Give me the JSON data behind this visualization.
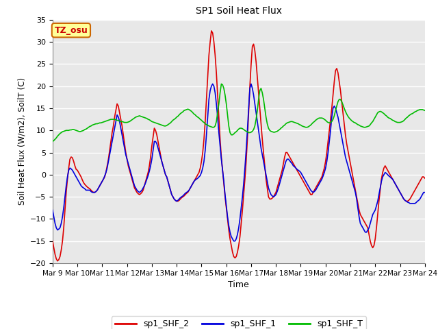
{
  "title": "SP1 Soil Heat Flux",
  "xlabel": "Time",
  "ylabel": "Soil Heat Flux (W/m2), SoilT (C)",
  "ylim": [
    -20,
    35
  ],
  "tz_label": "TZ_osu",
  "fig_bg_color": "#ffffff",
  "plot_bg_color": "#e8e8e8",
  "grid_color": "#ffffff",
  "series": {
    "sp1_SHF_2": {
      "color": "#dd0000",
      "linewidth": 1.2
    },
    "sp1_SHF_1": {
      "color": "#0000dd",
      "linewidth": 1.2
    },
    "sp1_SHF_T": {
      "color": "#00bb00",
      "linewidth": 1.2
    }
  },
  "x_ticks_labels": [
    "Mar 9",
    "Mar 10",
    "Mar 11",
    "Mar 12",
    "Mar 13",
    "Mar 14",
    "Mar 15",
    "Mar 16",
    "Mar 17",
    "Mar 18",
    "Mar 19",
    "Mar 20",
    "Mar 21",
    "Mar 22",
    "Mar 23",
    "Mar 24"
  ],
  "shf2_x": [
    9.0,
    9.05,
    9.1,
    9.15,
    9.2,
    9.25,
    9.3,
    9.35,
    9.4,
    9.45,
    9.5,
    9.55,
    9.6,
    9.65,
    9.7,
    9.75,
    9.8,
    9.85,
    9.9,
    9.95,
    10.0,
    10.05,
    10.1,
    10.15,
    10.2,
    10.25,
    10.3,
    10.35,
    10.4,
    10.45,
    10.5,
    10.55,
    10.6,
    10.65,
    10.7,
    10.75,
    10.8,
    10.85,
    10.9,
    10.95,
    11.0,
    11.05,
    11.1,
    11.15,
    11.2,
    11.25,
    11.3,
    11.35,
    11.4,
    11.45,
    11.5,
    11.55,
    11.6,
    11.65,
    11.7,
    11.75,
    11.8,
    11.85,
    11.9,
    11.95,
    12.0,
    12.05,
    12.1,
    12.15,
    12.2,
    12.25,
    12.3,
    12.35,
    12.4,
    12.45,
    12.5,
    12.55,
    12.6,
    12.65,
    12.7,
    12.75,
    12.8,
    12.85,
    12.9,
    12.95,
    13.0,
    13.05,
    13.1,
    13.15,
    13.2,
    13.25,
    13.3,
    13.35,
    13.4,
    13.45,
    13.5,
    13.55,
    13.6,
    13.65,
    13.7,
    13.75,
    13.8,
    13.85,
    13.9,
    13.95,
    14.0,
    14.05,
    14.1,
    14.15,
    14.2,
    14.25,
    14.3,
    14.35,
    14.4,
    14.45,
    14.5,
    14.55,
    14.6,
    14.65,
    14.7,
    14.75,
    14.8,
    14.85,
    14.9,
    14.95,
    15.0,
    15.05,
    15.1,
    15.15,
    15.2,
    15.25,
    15.3,
    15.35,
    15.4,
    15.45,
    15.5,
    15.55,
    15.6,
    15.65,
    15.7,
    15.75,
    15.8,
    15.85,
    15.9,
    15.95,
    16.0,
    16.05,
    16.1,
    16.15,
    16.2,
    16.25,
    16.3,
    16.35,
    16.4,
    16.45,
    16.5,
    16.55,
    16.6,
    16.65,
    16.7,
    16.75,
    16.8,
    16.85,
    16.9,
    16.95,
    17.0,
    17.05,
    17.1,
    17.15,
    17.2,
    17.25,
    17.3,
    17.35,
    17.4,
    17.45,
    17.5,
    17.55,
    17.6,
    17.65,
    17.7,
    17.75,
    17.8,
    17.85,
    17.9,
    17.95,
    18.0,
    18.05,
    18.1,
    18.15,
    18.2,
    18.25,
    18.3,
    18.35,
    18.4,
    18.45,
    18.5,
    18.55,
    18.6,
    18.65,
    18.7,
    18.75,
    18.8,
    18.85,
    18.9,
    18.95,
    19.0,
    19.05,
    19.1,
    19.15,
    19.2,
    19.25,
    19.3,
    19.35,
    19.4,
    19.45,
    19.5,
    19.55,
    19.6,
    19.65,
    19.7,
    19.75,
    19.8,
    19.85,
    19.9,
    19.95,
    20.0,
    20.05,
    20.1,
    20.15,
    20.2,
    20.25,
    20.3,
    20.35,
    20.4,
    20.45,
    20.5,
    20.55,
    20.6,
    20.65,
    20.7,
    20.75,
    20.8,
    20.85,
    20.9,
    20.95,
    21.0,
    21.05,
    21.1,
    21.15,
    21.2,
    21.25,
    21.3,
    21.35,
    21.4,
    21.45,
    21.5,
    21.55,
    21.6,
    21.65,
    21.7,
    21.75,
    21.8,
    21.85,
    21.9,
    21.95,
    22.0,
    22.05,
    22.1,
    22.15,
    22.2,
    22.25,
    22.3,
    22.35,
    22.4,
    22.45,
    22.5,
    22.55,
    22.6,
    22.65,
    22.7,
    22.75,
    22.8,
    22.85,
    22.9,
    22.95,
    23.0,
    23.05,
    23.1,
    23.15,
    23.2,
    23.25,
    23.3,
    23.35,
    23.4,
    23.45,
    23.5,
    23.55,
    23.6,
    23.65,
    23.7,
    23.75,
    23.8,
    23.85,
    23.9,
    23.95,
    24.0
  ],
  "shf2_y": [
    -15.0,
    -16.5,
    -18.0,
    -19.0,
    -19.5,
    -19.2,
    -18.5,
    -17.0,
    -15.0,
    -12.0,
    -8.0,
    -4.0,
    -1.0,
    1.5,
    3.5,
    4.0,
    3.8,
    3.0,
    2.0,
    1.2,
    1.0,
    0.5,
    0.0,
    -0.5,
    -1.2,
    -1.8,
    -2.2,
    -2.5,
    -2.8,
    -3.0,
    -3.2,
    -3.5,
    -3.8,
    -4.0,
    -4.0,
    -3.8,
    -3.5,
    -3.0,
    -2.5,
    -2.0,
    -1.5,
    -1.0,
    -0.5,
    0.5,
    2.0,
    3.5,
    5.5,
    7.5,
    9.5,
    11.0,
    13.0,
    14.5,
    16.0,
    15.5,
    14.0,
    12.5,
    11.0,
    9.0,
    7.0,
    5.0,
    3.5,
    2.0,
    1.0,
    0.0,
    -1.0,
    -2.0,
    -3.0,
    -3.5,
    -4.0,
    -4.3,
    -4.5,
    -4.3,
    -4.0,
    -3.5,
    -2.5,
    -1.5,
    -0.5,
    0.5,
    2.0,
    4.0,
    6.5,
    8.5,
    10.5,
    10.0,
    9.0,
    7.5,
    6.0,
    4.5,
    3.0,
    2.0,
    1.0,
    0.0,
    -0.5,
    -1.5,
    -2.5,
    -3.5,
    -4.5,
    -5.0,
    -5.5,
    -5.8,
    -6.0,
    -6.0,
    -5.8,
    -5.5,
    -5.2,
    -5.0,
    -4.8,
    -4.5,
    -4.2,
    -4.0,
    -3.5,
    -3.0,
    -2.5,
    -2.0,
    -1.5,
    -1.0,
    -0.5,
    0.0,
    0.5,
    1.5,
    3.0,
    5.0,
    8.0,
    12.0,
    17.0,
    22.0,
    27.0,
    30.0,
    32.5,
    32.0,
    30.0,
    27.0,
    23.0,
    18.0,
    13.0,
    8.0,
    4.0,
    1.0,
    -2.0,
    -5.0,
    -7.5,
    -10.0,
    -12.5,
    -14.5,
    -16.0,
    -17.5,
    -18.5,
    -18.8,
    -18.5,
    -17.5,
    -16.0,
    -14.0,
    -11.0,
    -8.0,
    -4.5,
    -1.0,
    3.0,
    8.0,
    14.0,
    20.0,
    25.0,
    29.0,
    29.5,
    28.0,
    25.5,
    22.0,
    18.5,
    15.0,
    11.5,
    8.0,
    5.0,
    2.0,
    -1.0,
    -3.0,
    -5.0,
    -5.5,
    -5.5,
    -5.3,
    -5.0,
    -4.5,
    -4.0,
    -3.0,
    -2.0,
    -1.0,
    0.0,
    1.0,
    2.5,
    4.0,
    5.0,
    5.0,
    4.5,
    4.0,
    3.5,
    3.0,
    2.5,
    2.0,
    1.5,
    1.0,
    0.5,
    0.0,
    -0.5,
    -1.0,
    -1.5,
    -2.0,
    -2.5,
    -3.0,
    -3.5,
    -4.0,
    -4.5,
    -4.5,
    -4.0,
    -3.5,
    -3.0,
    -2.5,
    -2.0,
    -1.5,
    -1.0,
    -0.5,
    0.5,
    1.5,
    3.0,
    5.0,
    7.5,
    10.0,
    12.5,
    15.0,
    18.0,
    21.0,
    23.5,
    24.0,
    23.0,
    21.0,
    19.0,
    16.5,
    14.0,
    11.5,
    9.0,
    7.0,
    5.5,
    4.0,
    2.5,
    1.0,
    -0.5,
    -2.0,
    -3.5,
    -5.0,
    -6.5,
    -8.0,
    -9.0,
    -9.5,
    -10.0,
    -10.5,
    -11.0,
    -11.5,
    -12.0,
    -13.5,
    -15.0,
    -16.0,
    -16.5,
    -16.0,
    -14.5,
    -12.0,
    -9.0,
    -6.0,
    -3.5,
    -1.0,
    0.5,
    1.5,
    2.0,
    1.5,
    1.0,
    0.5,
    0.0,
    -0.5,
    -1.0,
    -1.5,
    -2.0,
    -2.5,
    -3.0,
    -3.5,
    -4.0,
    -4.5,
    -5.0,
    -5.5,
    -5.8,
    -6.0,
    -6.0,
    -5.8,
    -5.5,
    -5.0,
    -4.5,
    -4.0,
    -3.5,
    -3.0,
    -2.5,
    -2.0,
    -1.5,
    -1.0,
    -0.5,
    -0.5,
    -0.8
  ],
  "shf1_y": [
    -8.0,
    -9.5,
    -11.0,
    -12.0,
    -12.5,
    -12.3,
    -12.0,
    -11.0,
    -9.5,
    -7.5,
    -5.0,
    -2.5,
    -0.5,
    1.0,
    1.5,
    1.3,
    1.0,
    0.5,
    0.0,
    -0.5,
    -1.0,
    -1.5,
    -2.0,
    -2.5,
    -2.8,
    -3.0,
    -3.2,
    -3.5,
    -3.5,
    -3.5,
    -3.5,
    -3.8,
    -4.0,
    -4.0,
    -4.0,
    -3.8,
    -3.5,
    -3.0,
    -2.5,
    -2.0,
    -1.5,
    -1.0,
    -0.3,
    0.5,
    1.5,
    3.0,
    4.5,
    6.0,
    7.5,
    9.0,
    10.5,
    12.0,
    13.5,
    13.0,
    12.0,
    10.5,
    9.0,
    7.5,
    6.0,
    4.5,
    3.5,
    2.5,
    1.5,
    0.5,
    -0.5,
    -1.5,
    -2.5,
    -3.0,
    -3.5,
    -3.8,
    -4.0,
    -3.8,
    -3.5,
    -3.0,
    -2.5,
    -1.8,
    -1.0,
    -0.2,
    0.8,
    2.0,
    3.5,
    5.5,
    7.5,
    7.5,
    7.0,
    6.0,
    5.0,
    4.0,
    3.0,
    2.0,
    1.0,
    0.0,
    -0.5,
    -1.5,
    -2.5,
    -3.5,
    -4.5,
    -5.0,
    -5.5,
    -5.8,
    -6.0,
    -5.8,
    -5.5,
    -5.2,
    -5.0,
    -4.8,
    -4.5,
    -4.2,
    -4.0,
    -3.8,
    -3.5,
    -3.0,
    -2.5,
    -2.0,
    -1.5,
    -1.2,
    -1.0,
    -0.8,
    -0.5,
    -0.2,
    0.5,
    1.5,
    3.0,
    5.5,
    9.0,
    13.0,
    17.0,
    19.0,
    20.0,
    20.5,
    20.0,
    18.5,
    16.0,
    13.0,
    9.5,
    6.5,
    3.5,
    1.0,
    -1.5,
    -4.5,
    -7.0,
    -9.5,
    -11.5,
    -13.0,
    -14.0,
    -14.5,
    -15.0,
    -15.0,
    -14.5,
    -13.5,
    -12.0,
    -10.0,
    -7.5,
    -5.0,
    -2.0,
    1.5,
    5.5,
    10.0,
    15.0,
    19.5,
    20.5,
    19.5,
    18.0,
    16.0,
    14.0,
    12.0,
    10.0,
    8.0,
    6.0,
    4.5,
    3.0,
    1.5,
    0.0,
    -1.5,
    -3.0,
    -3.8,
    -4.5,
    -4.8,
    -5.0,
    -4.8,
    -4.5,
    -3.8,
    -3.0,
    -2.0,
    -1.0,
    0.0,
    1.0,
    2.0,
    3.0,
    3.5,
    3.5,
    3.2,
    2.8,
    2.5,
    2.0,
    1.8,
    1.5,
    1.2,
    1.0,
    0.8,
    0.5,
    0.0,
    -0.5,
    -1.0,
    -1.5,
    -2.0,
    -2.5,
    -3.0,
    -3.5,
    -3.8,
    -4.0,
    -3.8,
    -3.5,
    -3.0,
    -2.5,
    -2.0,
    -1.5,
    -1.0,
    -0.3,
    0.5,
    1.5,
    3.0,
    5.0,
    7.5,
    10.0,
    13.0,
    15.0,
    15.5,
    15.0,
    14.0,
    13.0,
    11.5,
    10.0,
    8.5,
    7.0,
    5.5,
    4.0,
    3.0,
    2.0,
    1.0,
    0.0,
    -1.0,
    -2.0,
    -3.0,
    -4.0,
    -5.5,
    -7.5,
    -9.5,
    -11.0,
    -11.5,
    -12.0,
    -12.5,
    -13.0,
    -13.0,
    -12.5,
    -12.0,
    -11.0,
    -10.0,
    -9.0,
    -8.5,
    -8.0,
    -7.0,
    -6.0,
    -4.5,
    -3.0,
    -1.5,
    -0.5,
    0.0,
    0.5,
    0.3,
    0.0,
    -0.3,
    -0.5,
    -0.8,
    -1.0,
    -1.5,
    -2.0,
    -2.5,
    -3.0,
    -3.5,
    -4.0,
    -4.5,
    -5.0,
    -5.5,
    -5.8,
    -6.0,
    -6.2,
    -6.3,
    -6.5,
    -6.5,
    -6.5,
    -6.5,
    -6.5,
    -6.3,
    -6.0,
    -5.8,
    -5.5,
    -5.0,
    -4.5,
    -4.0,
    -4.0
  ],
  "shft_y": [
    7.5,
    7.7,
    8.0,
    8.3,
    8.7,
    9.0,
    9.3,
    9.5,
    9.7,
    9.8,
    9.9,
    10.0,
    10.0,
    10.0,
    10.1,
    10.1,
    10.2,
    10.2,
    10.1,
    10.0,
    9.9,
    9.8,
    9.7,
    9.8,
    9.9,
    10.0,
    10.2,
    10.3,
    10.5,
    10.7,
    10.9,
    11.0,
    11.2,
    11.3,
    11.4,
    11.5,
    11.5,
    11.6,
    11.7,
    11.7,
    11.8,
    11.9,
    12.0,
    12.1,
    12.2,
    12.3,
    12.4,
    12.5,
    12.5,
    12.5,
    12.5,
    12.4,
    12.3,
    12.2,
    12.1,
    12.0,
    12.0,
    11.9,
    11.8,
    11.8,
    11.8,
    11.9,
    12.0,
    12.2,
    12.4,
    12.6,
    12.8,
    13.0,
    13.1,
    13.2,
    13.3,
    13.2,
    13.1,
    13.0,
    12.9,
    12.8,
    12.7,
    12.5,
    12.4,
    12.2,
    12.0,
    11.9,
    11.8,
    11.7,
    11.6,
    11.5,
    11.4,
    11.3,
    11.2,
    11.1,
    11.0,
    11.0,
    11.1,
    11.3,
    11.5,
    11.7,
    12.0,
    12.3,
    12.5,
    12.7,
    13.0,
    13.2,
    13.5,
    13.8,
    14.0,
    14.2,
    14.5,
    14.6,
    14.7,
    14.8,
    14.7,
    14.5,
    14.3,
    14.0,
    13.7,
    13.5,
    13.2,
    13.0,
    12.8,
    12.5,
    12.3,
    12.0,
    11.8,
    11.5,
    11.3,
    11.2,
    11.0,
    10.9,
    10.8,
    10.7,
    10.7,
    11.0,
    12.0,
    14.0,
    16.0,
    18.5,
    20.5,
    20.3,
    19.5,
    18.0,
    16.0,
    13.5,
    11.0,
    9.5,
    9.0,
    9.0,
    9.2,
    9.5,
    9.7,
    10.0,
    10.3,
    10.5,
    10.5,
    10.4,
    10.2,
    10.0,
    9.8,
    9.7,
    9.5,
    9.5,
    9.6,
    9.8,
    10.2,
    11.0,
    12.5,
    14.5,
    17.0,
    19.0,
    19.5,
    18.5,
    17.0,
    15.0,
    13.0,
    11.5,
    10.5,
    10.0,
    9.8,
    9.7,
    9.6,
    9.6,
    9.7,
    9.8,
    10.0,
    10.2,
    10.5,
    10.7,
    11.0,
    11.2,
    11.5,
    11.7,
    11.8,
    11.9,
    12.0,
    12.0,
    11.9,
    11.8,
    11.7,
    11.6,
    11.5,
    11.3,
    11.2,
    11.0,
    10.9,
    10.8,
    10.7,
    10.7,
    10.8,
    11.0,
    11.2,
    11.5,
    11.8,
    12.0,
    12.3,
    12.5,
    12.7,
    12.8,
    12.8,
    12.8,
    12.7,
    12.5,
    12.3,
    12.0,
    11.8,
    11.7,
    11.8,
    12.0,
    12.5,
    13.3,
    14.5,
    15.5,
    16.5,
    17.0,
    17.0,
    16.5,
    15.8,
    15.0,
    14.3,
    13.7,
    13.2,
    12.8,
    12.5,
    12.2,
    12.0,
    11.8,
    11.7,
    11.5,
    11.3,
    11.2,
    11.0,
    10.9,
    10.8,
    10.7,
    10.7,
    10.8,
    10.9,
    11.0,
    11.3,
    11.7,
    12.0,
    12.5,
    13.0,
    13.5,
    14.0,
    14.2,
    14.3,
    14.2,
    14.0,
    13.8,
    13.5,
    13.3,
    13.0,
    12.8,
    12.7,
    12.5,
    12.3,
    12.2,
    12.0,
    11.9,
    11.8,
    11.8,
    11.8,
    11.9,
    12.0,
    12.2,
    12.5,
    12.8,
    13.0,
    13.3,
    13.5,
    13.7,
    13.8,
    14.0,
    14.2,
    14.3,
    14.5,
    14.6,
    14.7,
    14.7,
    14.7,
    14.6,
    14.5
  ]
}
